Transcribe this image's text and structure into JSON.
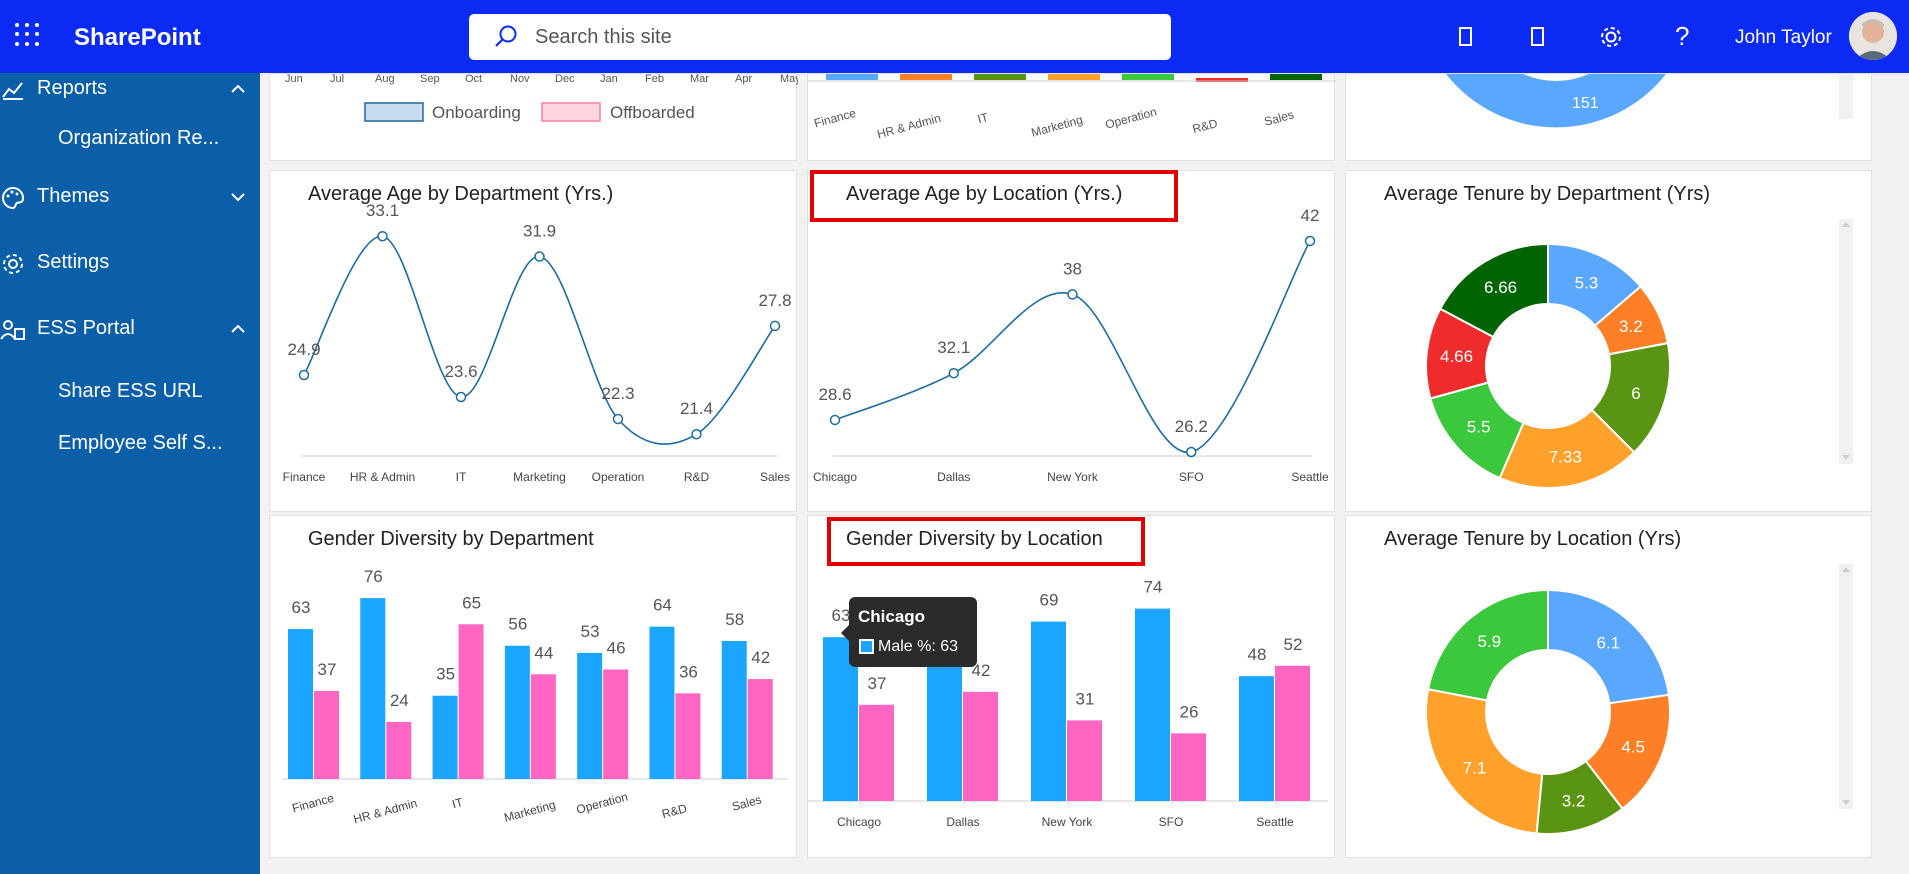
{
  "topbar": {
    "brand": "SharePoint",
    "search_placeholder": "Search this site",
    "username": "John Taylor"
  },
  "sidebar": {
    "items": [
      {
        "label": "Reports",
        "icon": "chart-line-icon",
        "chevron": "up"
      },
      {
        "label": "Themes",
        "icon": "palette-icon",
        "chevron": "down"
      },
      {
        "label": "Settings",
        "icon": "gear-icon",
        "chevron": ""
      },
      {
        "label": "ESS Portal",
        "icon": "people-icon",
        "chevron": "up"
      }
    ],
    "subitems": {
      "reports": [
        "Organization Re..."
      ],
      "ess": [
        "Share ESS URL",
        "Employee Self S..."
      ]
    }
  },
  "colors": {
    "blue": "#1aa6ff",
    "pink": "#ff66c4",
    "line": "#1e6b9e",
    "topbar": "#0b2bf5",
    "sidebar": "#0b5ea8"
  },
  "top_partial": {
    "months": [
      "Jun",
      "Jul",
      "Aug",
      "Sep",
      "Oct",
      "Nov",
      "Dec",
      "Jan",
      "Feb",
      "Mar",
      "Apr",
      "May"
    ],
    "legend": [
      "Onboarding",
      "Offboarded"
    ],
    "depts": [
      "Finance",
      "HR & Admin",
      "IT",
      "Marketing",
      "Operation",
      "R&D",
      "Sales"
    ],
    "pie_value": "151"
  },
  "chart_data": [
    {
      "type": "line",
      "title": "Average Age by Department (Yrs.)",
      "categories": [
        "Finance",
        "HR & Admin",
        "IT",
        "Marketing",
        "Operation",
        "R&D",
        "Sales"
      ],
      "values": [
        24.9,
        33.1,
        23.6,
        31.9,
        22.3,
        21.4,
        27.8
      ]
    },
    {
      "type": "line",
      "title": "Average Age by Location (Yrs.)",
      "categories": [
        "Chicago",
        "Dallas",
        "New York",
        "SFO",
        "Seattle"
      ],
      "values": [
        28.6,
        32.1,
        38,
        26.2,
        42
      ]
    },
    {
      "type": "pie",
      "title": "Average Tenure by Department (Yrs)",
      "slices": [
        {
          "value": 5.3,
          "color": "#5aa7ff"
        },
        {
          "value": 3.2,
          "color": "#ff7f27"
        },
        {
          "value": 6,
          "color": "#5a9413"
        },
        {
          "value": 7.33,
          "color": "#ffa12b"
        },
        {
          "value": 5.5,
          "color": "#3cc83c"
        },
        {
          "value": 4.66,
          "color": "#ef2b2b"
        },
        {
          "value": 6.66,
          "color": "#006400"
        }
      ]
    },
    {
      "type": "bar",
      "title": "Gender Diversity by Department",
      "categories": [
        "Finance",
        "HR & Admin",
        "IT",
        "Marketing",
        "Operation",
        "R&D",
        "Sales"
      ],
      "series": [
        {
          "values": [
            63,
            76,
            35,
            56,
            53,
            64,
            58
          ]
        },
        {
          "values": [
            37,
            24,
            65,
            44,
            46,
            36,
            42
          ]
        }
      ]
    },
    {
      "type": "bar",
      "title": "Gender Diversity by Location",
      "categories": [
        "Chicago",
        "Dallas",
        "New York",
        "SFO",
        "Seattle"
      ],
      "series": [
        {
          "name": "Male %",
          "values": [
            63,
            58,
            69,
            74,
            48
          ]
        },
        {
          "values": [
            37,
            42,
            31,
            26,
            52
          ]
        }
      ]
    },
    {
      "type": "pie",
      "title": "Average Tenure by Location (Yrs)",
      "slices": [
        {
          "value": 6.1,
          "color": "#5aa7ff"
        },
        {
          "value": 4.5,
          "color": "#ff7f27"
        },
        {
          "value": 3.2,
          "color": "#5a9413"
        },
        {
          "value": 7.1,
          "color": "#ffa12b"
        },
        {
          "value": 5.9,
          "color": "#3cc83c"
        }
      ]
    }
  ],
  "tooltip": {
    "title": "Chicago",
    "text": "Male %: 63"
  }
}
